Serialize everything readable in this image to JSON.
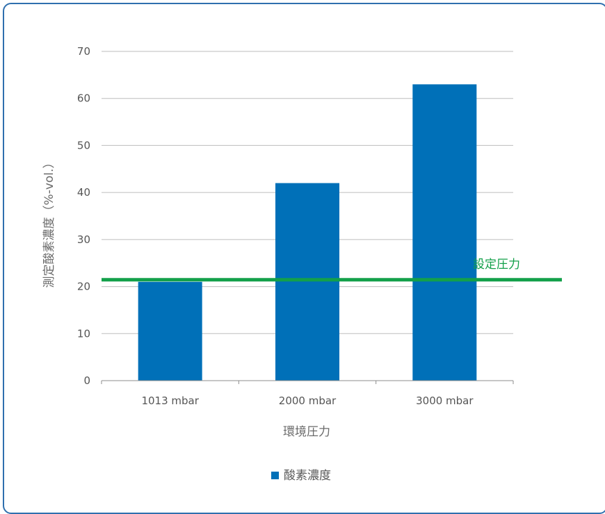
{
  "chart_data": {
    "type": "bar",
    "categories": [
      "1013 mbar",
      "2000 mbar",
      "3000 mbar"
    ],
    "series": [
      {
        "name": "酸素濃度",
        "values": [
          21,
          42,
          63
        ],
        "color": "#0070b8"
      }
    ],
    "reference_line": {
      "label": "設定圧力",
      "value": 21,
      "color": "#13a04a"
    },
    "title": "",
    "xlabel": "環境圧力",
    "ylabel": "測定酸素濃度（%-vol.）",
    "ylim": [
      0,
      70
    ],
    "yticks": [
      0,
      10,
      20,
      30,
      40,
      50,
      60,
      70
    ],
    "grid": true,
    "legend_position": "bottom"
  }
}
